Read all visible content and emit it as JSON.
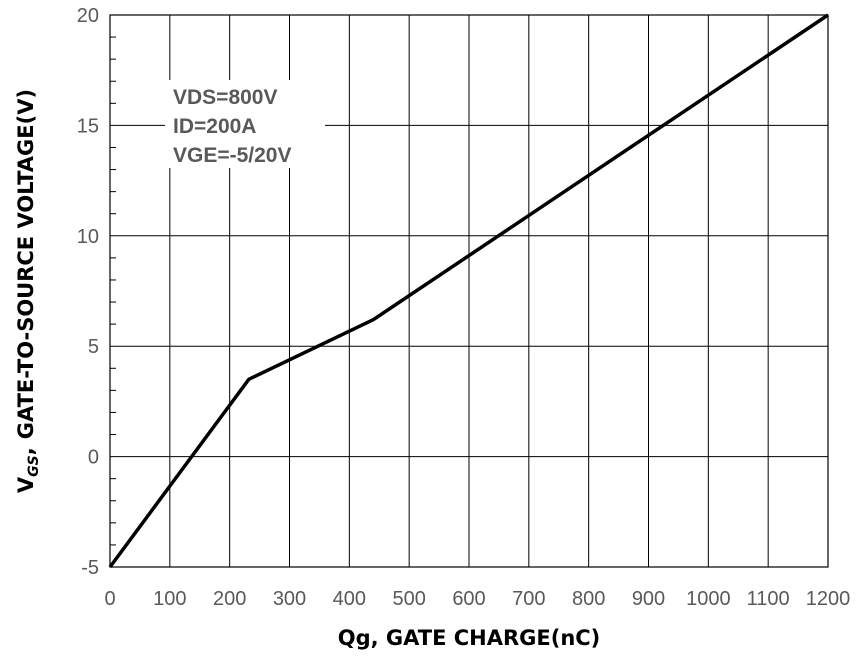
{
  "chart_data": {
    "type": "line",
    "xlabel": "Qg, GATE CHARGE(nC)",
    "ylabel": "GATE-TO-SOURCE VOLTAGE(V)",
    "ylabel_symbol": "V",
    "ylabel_subscript": "GS",
    "ylabel_suffix": ",",
    "xlim": [
      0,
      1200
    ],
    "ylim": [
      -5,
      20
    ],
    "x_ticks": [
      0,
      100,
      200,
      300,
      400,
      500,
      600,
      700,
      800,
      900,
      1000,
      1100,
      1200
    ],
    "y_ticks": [
      -5,
      0,
      5,
      10,
      15,
      20
    ],
    "x_tick_labels": [
      "0",
      "100",
      "200",
      "300",
      "400",
      "500",
      "600",
      "700",
      "800",
      "900",
      "1000",
      "1100",
      "1200"
    ],
    "y_tick_labels": [
      "-5",
      "0",
      "5",
      "10",
      "15",
      "20"
    ],
    "grid": true,
    "annotation": [
      "VDS=800V",
      "ID=200A",
      "VGE=-5/20V"
    ],
    "series": [
      {
        "x": [
          0,
          232,
          440,
          1200
        ],
        "y": [
          -5,
          3.5,
          6.2,
          20
        ]
      }
    ]
  }
}
